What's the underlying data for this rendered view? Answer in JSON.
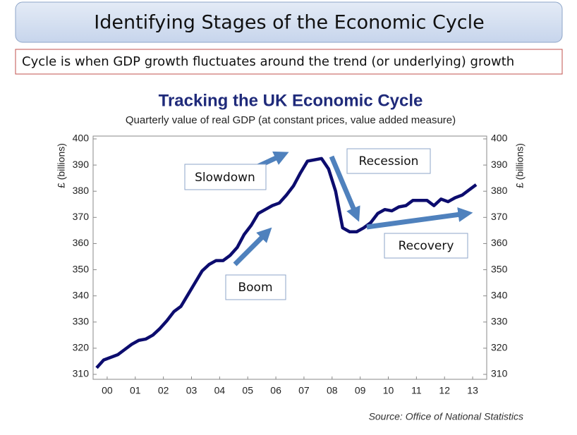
{
  "header": {
    "title": "Identifying Stages of the Economic Cycle",
    "subtitle": "Cycle is when GDP growth fluctuates around the trend (or underlying) growth"
  },
  "chart_data": {
    "type": "line",
    "title": "Tracking the UK Economic Cycle",
    "subtitle": "Quarterly value of real GDP (at constant prices, value added measure)",
    "y_label": "£ (billions)",
    "y2_label": "£ (billions)",
    "source": "Source: Office of National Statistics",
    "color": "#0c0c6e",
    "x": [
      0.125,
      0.375,
      0.625,
      0.875,
      1.125,
      1.375,
      1.625,
      1.875,
      2.125,
      2.375,
      2.625,
      2.875,
      3.125,
      3.375,
      3.625,
      3.875,
      4.125,
      4.375,
      4.625,
      4.875,
      5.125,
      5.375,
      5.625,
      5.875,
      6.125,
      6.375,
      6.625,
      6.875,
      7.125,
      7.375,
      7.625,
      7.875,
      8.125,
      8.375,
      8.625,
      8.875,
      9.125,
      9.375,
      9.625,
      9.875,
      10.125,
      10.375,
      10.625,
      10.875,
      11.125,
      11.375,
      11.625,
      11.875,
      12.125,
      12.375,
      12.625,
      12.875,
      13.125,
      13.375,
      13.625
    ],
    "values": [
      312.5,
      315.5,
      316.5,
      317.5,
      319.5,
      321.5,
      323,
      323.5,
      325,
      327.5,
      330.5,
      334,
      336,
      340.5,
      345,
      349.5,
      352,
      353.5,
      353.5,
      355.5,
      358.5,
      363.5,
      367,
      371.5,
      373,
      374.5,
      375.5,
      378.5,
      382,
      387,
      391.5,
      392,
      392.5,
      388.5,
      380,
      366,
      364.5,
      364.5,
      366,
      368,
      371.5,
      373,
      372.5,
      374,
      374.5,
      376.5,
      376.5,
      376.5,
      374.5,
      377,
      376,
      377.5,
      378.5,
      380.5,
      382.5
    ],
    "xlim": [
      0,
      14
    ],
    "xticks": [
      {
        "value": 0.5,
        "label": "00"
      },
      {
        "value": 1.5,
        "label": "01"
      },
      {
        "value": 2.5,
        "label": "02"
      },
      {
        "value": 3.5,
        "label": "03"
      },
      {
        "value": 4.5,
        "label": "04"
      },
      {
        "value": 5.5,
        "label": "05"
      },
      {
        "value": 6.5,
        "label": "06"
      },
      {
        "value": 7.5,
        "label": "07"
      },
      {
        "value": 8.5,
        "label": "08"
      },
      {
        "value": 9.5,
        "label": "09"
      },
      {
        "value": 10.5,
        "label": "10"
      },
      {
        "value": 11.5,
        "label": "11"
      },
      {
        "value": 12.5,
        "label": "12"
      },
      {
        "value": 13.5,
        "label": "13"
      }
    ],
    "ylim": [
      310,
      400
    ],
    "yticks": [
      310,
      320,
      330,
      340,
      350,
      360,
      370,
      380,
      390,
      400
    ],
    "annotations": [
      "Slowdown",
      "Recession",
      "Boom",
      "Recovery"
    ]
  }
}
